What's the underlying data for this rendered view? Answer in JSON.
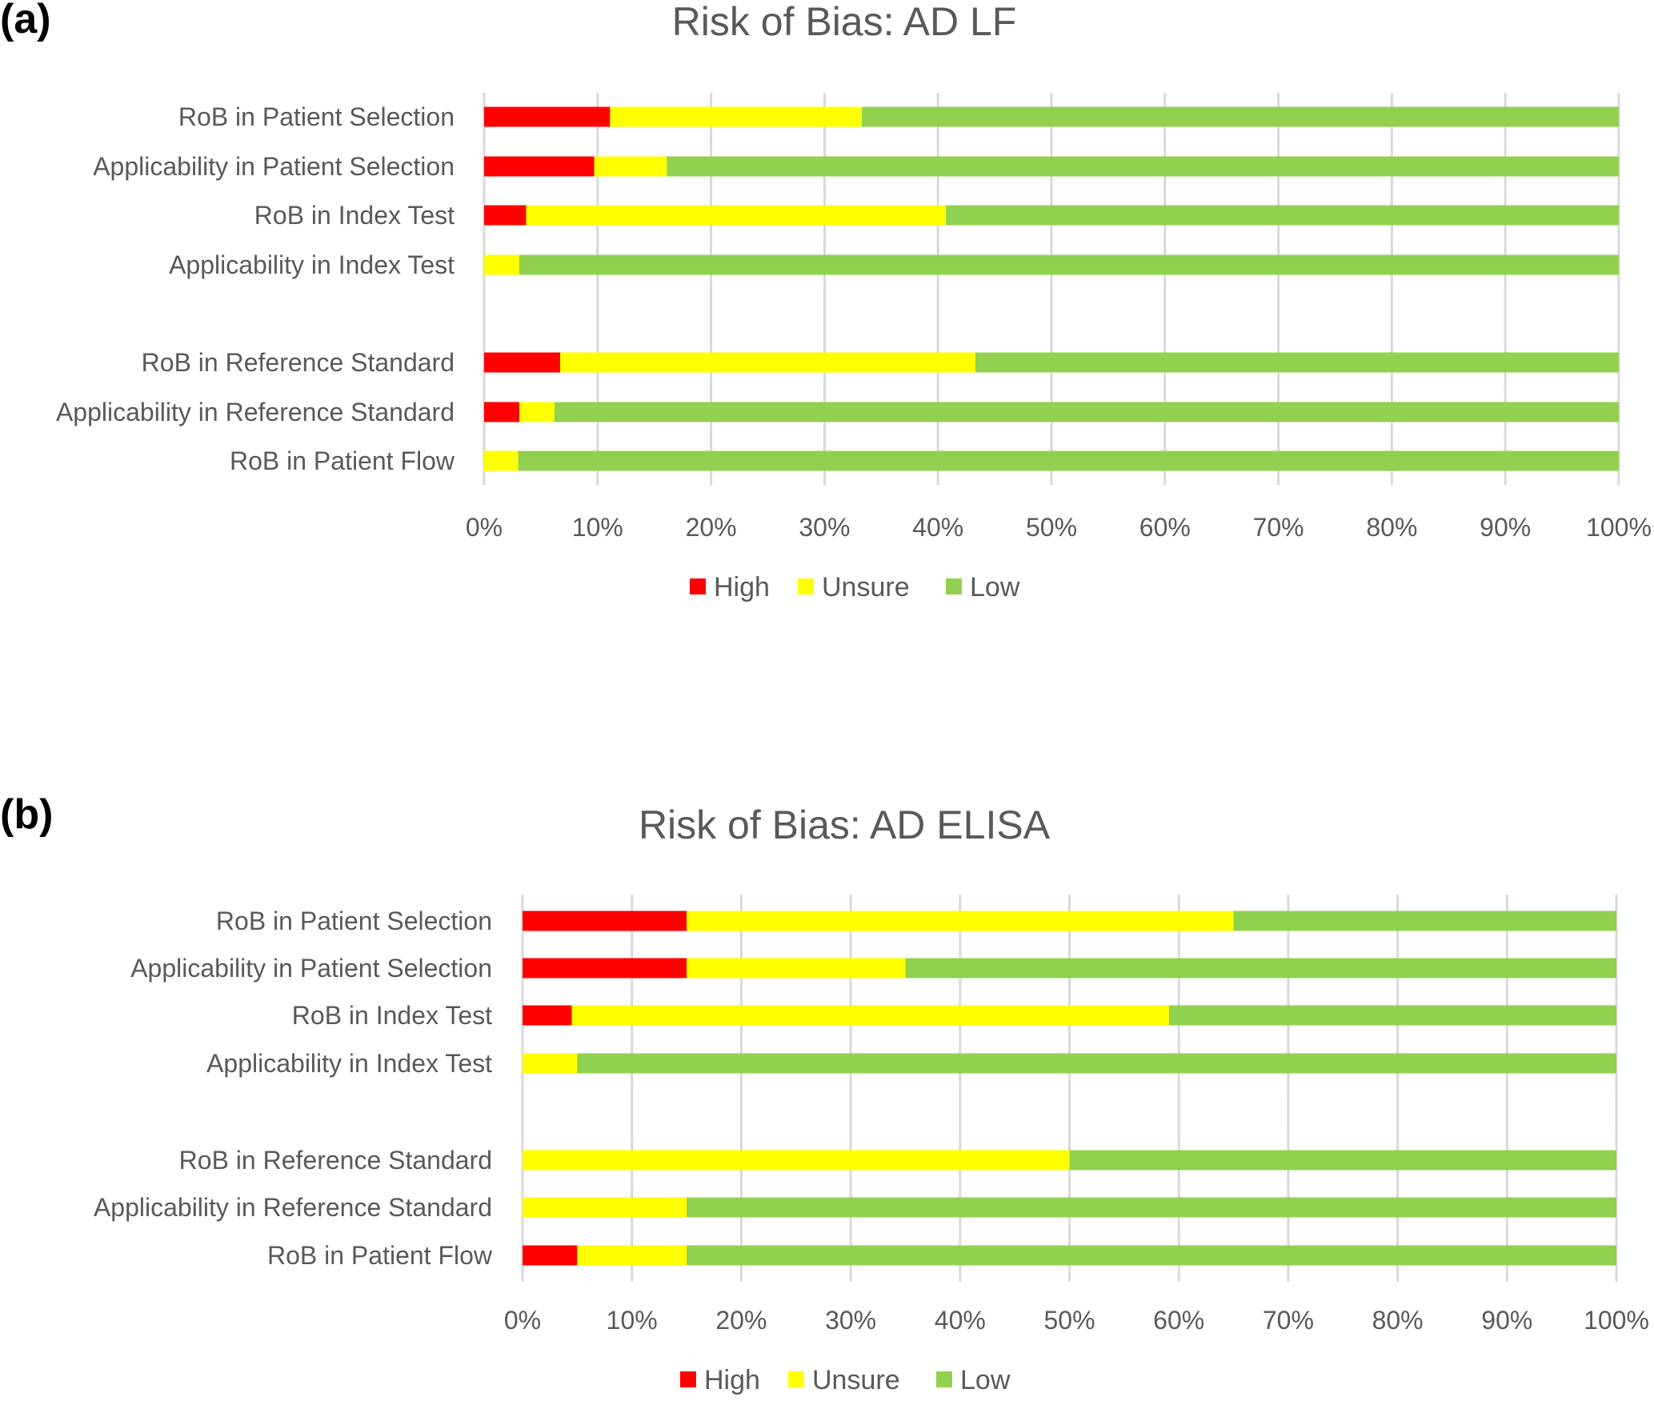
{
  "chart_data": [
    {
      "panel": "(a)",
      "type": "bar",
      "orientation": "horizontal",
      "stacked": "percent",
      "title": "Risk of Bias: AD LF",
      "xlabel": "",
      "ylabel": "",
      "xlim": [
        0,
        100
      ],
      "grid": true,
      "legend_position": "bottom",
      "x_ticks": [
        "0%",
        "10%",
        "20%",
        "30%",
        "40%",
        "50%",
        "60%",
        "70%",
        "80%",
        "90%",
        "100%"
      ],
      "categories": [
        "RoB in Patient Selection",
        "Applicability in Patient Selection",
        "RoB in Index Test",
        "Applicability in Index Test",
        "",
        "RoB in Reference Standard",
        "Applicability in Reference Standard",
        "RoB in Patient Flow"
      ],
      "series": [
        {
          "name": "High",
          "color": "#ff0000",
          "values": [
            11.1,
            9.7,
            3.7,
            0,
            null,
            6.7,
            3.1,
            0
          ]
        },
        {
          "name": "Unsure",
          "color": "#ffff00",
          "values": [
            22.2,
            6.4,
            37.0,
            3.1,
            null,
            36.6,
            3.1,
            3.0
          ]
        },
        {
          "name": "Low",
          "color": "#92d050",
          "values": [
            66.7,
            83.9,
            59.3,
            96.9,
            null,
            56.7,
            93.8,
            97.0
          ]
        }
      ]
    },
    {
      "panel": "(b)",
      "type": "bar",
      "orientation": "horizontal",
      "stacked": "percent",
      "title": "Risk of Bias: AD ELISA",
      "xlabel": "",
      "ylabel": "",
      "xlim": [
        0,
        100
      ],
      "grid": true,
      "legend_position": "bottom",
      "x_ticks": [
        "0%",
        "10%",
        "20%",
        "30%",
        "40%",
        "50%",
        "60%",
        "70%",
        "80%",
        "90%",
        "100%"
      ],
      "categories": [
        "RoB in Patient Selection",
        "Applicability in Patient Selection",
        "RoB in Index Test",
        "Applicability in Index Test",
        "",
        "RoB in Reference Standard",
        "Applicability in Reference Standard",
        "RoB in Patient Flow"
      ],
      "series": [
        {
          "name": "High",
          "color": "#ff0000",
          "values": [
            15.0,
            15.0,
            4.5,
            0,
            null,
            0,
            0,
            5.0
          ]
        },
        {
          "name": "Unsure",
          "color": "#ffff00",
          "values": [
            50.0,
            20.0,
            54.6,
            5.0,
            null,
            50.0,
            15.0,
            10.0
          ]
        },
        {
          "name": "Low",
          "color": "#92d050",
          "values": [
            35.0,
            65.0,
            40.9,
            95.0,
            null,
            50.0,
            85.0,
            85.0
          ]
        }
      ]
    }
  ]
}
